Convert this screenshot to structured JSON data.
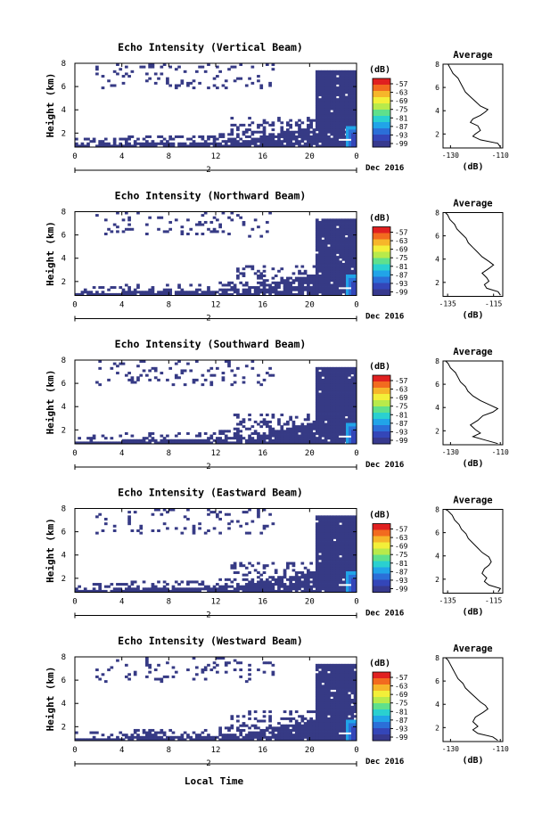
{
  "figure": {
    "xlabel_bottom": "Local Time",
    "date_label": "Dec 2016",
    "day_label": "2",
    "colorbar_unit": "(dB)",
    "colorbar_ticks": [
      "-57",
      "-63",
      "-69",
      "-75",
      "-81",
      "-87",
      "-93",
      "-99"
    ],
    "colorbar_colors": [
      "#e02020",
      "#f26b1f",
      "#f6b62a",
      "#f3ef39",
      "#b8ea4b",
      "#5fe08c",
      "#2ad0d0",
      "#21a4e8",
      "#2b6fd8",
      "#3446b8",
      "#37398e"
    ],
    "heatmap_fill": "#363a85",
    "avg_title": "Average",
    "avg_xlabel": "(dB)"
  },
  "chart_data": [
    {
      "type": "heatmap",
      "title": "Echo Intensity (Vertical Beam)",
      "ylabel": "Height (km)",
      "x_ticks": [
        "0",
        "4",
        "8",
        "12",
        "16",
        "20",
        "0"
      ],
      "y_ticks": [
        "2",
        "4",
        "6",
        "8"
      ],
      "xlim_hours": [
        0,
        24
      ],
      "ylim_km": [
        0.8,
        8.0
      ],
      "colorbar_range_db": [
        -99,
        -57
      ],
      "average": {
        "title": "Average",
        "xlabel": "(dB)",
        "x_ticks": [
          "-130",
          "-110"
        ],
        "y_ticks": [
          "2",
          "4",
          "6",
          "8"
        ],
        "xlim": [
          -133,
          -109
        ],
        "profile": [
          [
            0.9,
            -110
          ],
          [
            1.2,
            -111
          ],
          [
            1.5,
            -118
          ],
          [
            1.8,
            -121
          ],
          [
            2.0,
            -120
          ],
          [
            2.3,
            -118
          ],
          [
            2.7,
            -119
          ],
          [
            3.0,
            -122
          ],
          [
            3.3,
            -121
          ],
          [
            3.6,
            -118
          ],
          [
            3.9,
            -116
          ],
          [
            4.1,
            -115
          ],
          [
            4.4,
            -118
          ],
          [
            4.8,
            -120
          ],
          [
            5.2,
            -122
          ],
          [
            5.6,
            -124
          ],
          [
            6.0,
            -125
          ],
          [
            6.4,
            -126
          ],
          [
            6.8,
            -127
          ],
          [
            7.2,
            -129
          ],
          [
            7.6,
            -130
          ],
          [
            8.0,
            -131
          ]
        ]
      }
    },
    {
      "type": "heatmap",
      "title": "Echo Intensity (Northward Beam)",
      "ylabel": "Height (km)",
      "x_ticks": [
        "0",
        "4",
        "8",
        "12",
        "16",
        "20",
        "0"
      ],
      "y_ticks": [
        "2",
        "4",
        "6",
        "8"
      ],
      "xlim_hours": [
        0,
        24
      ],
      "ylim_km": [
        0.8,
        8.0
      ],
      "colorbar_range_db": [
        -99,
        -57
      ],
      "average": {
        "title": "Average",
        "xlabel": "(dB)",
        "x_ticks": [
          "-135",
          "-115"
        ],
        "y_ticks": [
          "2",
          "4",
          "6",
          "8"
        ],
        "xlim": [
          -137,
          -111
        ],
        "profile": [
          [
            0.9,
            -112
          ],
          [
            1.2,
            -113
          ],
          [
            1.5,
            -118
          ],
          [
            1.8,
            -119
          ],
          [
            2.1,
            -117
          ],
          [
            2.4,
            -118
          ],
          [
            2.8,
            -120
          ],
          [
            3.2,
            -117
          ],
          [
            3.5,
            -115
          ],
          [
            3.8,
            -117
          ],
          [
            4.2,
            -120
          ],
          [
            4.6,
            -122
          ],
          [
            5.0,
            -124
          ],
          [
            5.4,
            -126
          ],
          [
            5.8,
            -127
          ],
          [
            6.2,
            -129
          ],
          [
            6.6,
            -131
          ],
          [
            7.0,
            -132
          ],
          [
            7.4,
            -134
          ],
          [
            7.8,
            -135
          ],
          [
            8.0,
            -136
          ]
        ]
      }
    },
    {
      "type": "heatmap",
      "title": "Echo Intensity (Southward Beam)",
      "ylabel": "Height (km)",
      "x_ticks": [
        "0",
        "4",
        "8",
        "12",
        "16",
        "20",
        "0"
      ],
      "y_ticks": [
        "2",
        "4",
        "6",
        "8"
      ],
      "xlim_hours": [
        0,
        24
      ],
      "ylim_km": [
        0.8,
        8.0
      ],
      "colorbar_range_db": [
        -99,
        -57
      ],
      "average": {
        "title": "Average",
        "xlabel": "(dB)",
        "x_ticks": [
          "-130",
          "-110"
        ],
        "y_ticks": [
          "2",
          "4",
          "6",
          "8"
        ],
        "xlim": [
          -133,
          -109
        ],
        "profile": [
          [
            0.9,
            -111
          ],
          [
            1.2,
            -116
          ],
          [
            1.5,
            -121
          ],
          [
            1.8,
            -118
          ],
          [
            2.1,
            -120
          ],
          [
            2.5,
            -122
          ],
          [
            2.9,
            -119
          ],
          [
            3.3,
            -117
          ],
          [
            3.6,
            -113
          ],
          [
            3.9,
            -111
          ],
          [
            4.2,
            -114
          ],
          [
            4.6,
            -118
          ],
          [
            5.0,
            -121
          ],
          [
            5.4,
            -123
          ],
          [
            5.8,
            -124
          ],
          [
            6.2,
            -126
          ],
          [
            6.6,
            -127
          ],
          [
            7.0,
            -128
          ],
          [
            7.4,
            -130
          ],
          [
            7.8,
            -131
          ],
          [
            8.0,
            -132
          ]
        ]
      }
    },
    {
      "type": "heatmap",
      "title": "Echo Intensity (Eastward Beam)",
      "ylabel": "Height (km)",
      "x_ticks": [
        "0",
        "4",
        "8",
        "12",
        "16",
        "20",
        "0"
      ],
      "y_ticks": [
        "2",
        "4",
        "6",
        "8"
      ],
      "xlim_hours": [
        0,
        24
      ],
      "ylim_km": [
        0.8,
        8.0
      ],
      "colorbar_range_db": [
        -99,
        -57
      ],
      "average": {
        "title": "Average",
        "xlabel": "(dB)",
        "x_ticks": [
          "-135",
          "-115"
        ],
        "y_ticks": [
          "2",
          "4",
          "6",
          "8"
        ],
        "xlim": [
          -137,
          -111
        ],
        "profile": [
          [
            0.9,
            -113
          ],
          [
            1.2,
            -112
          ],
          [
            1.5,
            -117
          ],
          [
            1.8,
            -119
          ],
          [
            2.1,
            -118
          ],
          [
            2.5,
            -120
          ],
          [
            2.9,
            -119
          ],
          [
            3.2,
            -117
          ],
          [
            3.5,
            -116
          ],
          [
            3.9,
            -117
          ],
          [
            4.3,
            -120
          ],
          [
            4.7,
            -122
          ],
          [
            5.1,
            -124
          ],
          [
            5.5,
            -126
          ],
          [
            5.9,
            -127
          ],
          [
            6.3,
            -129
          ],
          [
            6.7,
            -130
          ],
          [
            7.1,
            -132
          ],
          [
            7.5,
            -133
          ],
          [
            7.9,
            -135
          ],
          [
            8.0,
            -136
          ]
        ]
      }
    },
    {
      "type": "heatmap",
      "title": "Echo Intensity (Westward Beam)",
      "ylabel": "Height (km)",
      "x_ticks": [
        "0",
        "4",
        "8",
        "12",
        "16",
        "20",
        "0"
      ],
      "y_ticks": [
        "2",
        "4",
        "6",
        "8"
      ],
      "xlim_hours": [
        0,
        24
      ],
      "ylim_km": [
        0.8,
        8.0
      ],
      "colorbar_range_db": [
        -99,
        -57
      ],
      "average": {
        "title": "Average",
        "xlabel": "(dB)",
        "x_ticks": [
          "-130",
          "-110"
        ],
        "y_ticks": [
          "2",
          "4",
          "6",
          "8"
        ],
        "xlim": [
          -133,
          -109
        ],
        "profile": [
          [
            0.9,
            -111
          ],
          [
            1.2,
            -113
          ],
          [
            1.5,
            -119
          ],
          [
            1.8,
            -121
          ],
          [
            2.1,
            -119
          ],
          [
            2.5,
            -121
          ],
          [
            2.9,
            -120
          ],
          [
            3.3,
            -117
          ],
          [
            3.6,
            -115
          ],
          [
            3.9,
            -116
          ],
          [
            4.2,
            -118
          ],
          [
            4.6,
            -120
          ],
          [
            5.0,
            -122
          ],
          [
            5.4,
            -124
          ],
          [
            5.8,
            -125
          ],
          [
            6.2,
            -127
          ],
          [
            6.6,
            -128
          ],
          [
            7.0,
            -129
          ],
          [
            7.4,
            -130
          ],
          [
            7.8,
            -131
          ],
          [
            8.0,
            -132
          ]
        ]
      }
    }
  ]
}
